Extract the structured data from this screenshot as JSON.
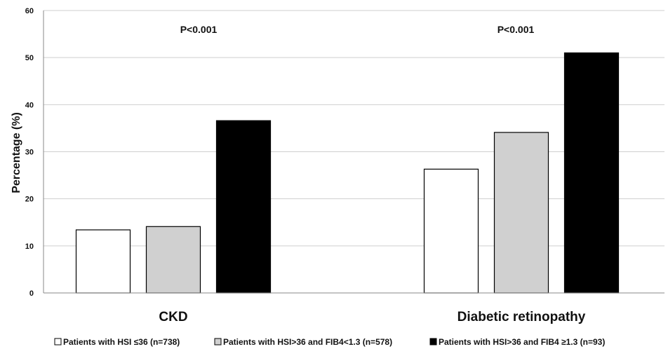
{
  "chart_data": {
    "type": "bar",
    "categories": [
      "CKD",
      "Diabetic retinopathy"
    ],
    "series": [
      {
        "name": "Patients with HSI ≤36 (n=738)",
        "values": [
          13.4,
          26.3
        ],
        "color": "#ffffff"
      },
      {
        "name": "Patients with HSI>36 and FIB4<1.3 (n=578)",
        "values": [
          14.1,
          34.1
        ],
        "color": "#d0d0d0"
      },
      {
        "name": "Patients with HSI>36 and FIB4 ≥1.3 (n=93)",
        "values": [
          36.6,
          51.0
        ],
        "color": "#000000"
      }
    ],
    "annotations": [
      "P<0.001",
      "P<0.001"
    ],
    "ylabel": "Percentage (%)",
    "ylim": [
      0,
      60
    ],
    "yticks": [
      0,
      10,
      20,
      30,
      40,
      50,
      60
    ],
    "grid": true,
    "legend_position": "bottom"
  }
}
